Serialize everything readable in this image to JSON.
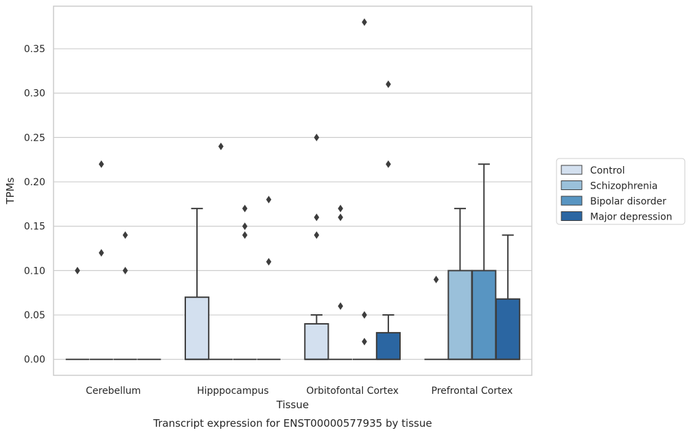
{
  "chart_data": {
    "type": "box",
    "title": "",
    "xlabel": "Tissue",
    "ylabel": "TPMs",
    "caption": "Transcript expression for ENST00000577935 by tissue",
    "ylim": [
      -0.018,
      0.398
    ],
    "yticks": [
      "0.00",
      "0.05",
      "0.10",
      "0.15",
      "0.20",
      "0.25",
      "0.30",
      "0.35"
    ],
    "grid": true,
    "legend_position": "right",
    "categories": [
      "Cerebellum",
      "Hipppocampus",
      "Orbitofontal Cortex",
      "Prefrontal Cortex"
    ],
    "series": [
      {
        "name": "Control",
        "color": "#d3e0ef",
        "boxes": [
          {
            "q1": 0,
            "median": 0,
            "q3": 0,
            "whisker_low": 0,
            "whisker_high": 0,
            "outliers": [
              0.1
            ]
          },
          {
            "q1": 0,
            "median": 0,
            "q3": 0.07,
            "whisker_low": 0,
            "whisker_high": 0.17,
            "outliers": []
          },
          {
            "q1": 0,
            "median": 0,
            "q3": 0.04,
            "whisker_low": 0,
            "whisker_high": 0.05,
            "outliers": [
              0.14,
              0.16,
              0.25
            ]
          },
          {
            "q1": 0,
            "median": 0,
            "q3": 0,
            "whisker_low": 0,
            "whisker_high": 0,
            "outliers": [
              0.09
            ]
          }
        ]
      },
      {
        "name": "Schizophrenia",
        "color": "#9ac0da",
        "boxes": [
          {
            "q1": 0,
            "median": 0,
            "q3": 0,
            "whisker_low": 0,
            "whisker_high": 0,
            "outliers": [
              0.12,
              0.22
            ]
          },
          {
            "q1": 0,
            "median": 0,
            "q3": 0,
            "whisker_low": 0,
            "whisker_high": 0,
            "outliers": [
              0.24
            ]
          },
          {
            "q1": 0,
            "median": 0,
            "q3": 0,
            "whisker_low": 0,
            "whisker_high": 0,
            "outliers": [
              0.06,
              0.16,
              0.17
            ]
          },
          {
            "q1": 0,
            "median": 0,
            "q3": 0.1,
            "whisker_low": 0,
            "whisker_high": 0.17,
            "outliers": []
          }
        ]
      },
      {
        "name": "Bipolar disorder",
        "color": "#5895c2",
        "boxes": [
          {
            "q1": 0,
            "median": 0,
            "q3": 0,
            "whisker_low": 0,
            "whisker_high": 0,
            "outliers": [
              0.1,
              0.14
            ]
          },
          {
            "q1": 0,
            "median": 0,
            "q3": 0,
            "whisker_low": 0,
            "whisker_high": 0,
            "outliers": [
              0.14,
              0.15,
              0.17
            ]
          },
          {
            "q1": 0,
            "median": 0,
            "q3": 0,
            "whisker_low": 0,
            "whisker_high": 0,
            "outliers": [
              0.02,
              0.05,
              0.38
            ]
          },
          {
            "q1": 0,
            "median": 0,
            "q3": 0.1,
            "whisker_low": 0,
            "whisker_high": 0.22,
            "outliers": []
          }
        ]
      },
      {
        "name": "Major depression",
        "color": "#2b66a2",
        "boxes": [
          {
            "q1": 0,
            "median": 0,
            "q3": 0,
            "whisker_low": 0,
            "whisker_high": 0,
            "outliers": []
          },
          {
            "q1": 0,
            "median": 0,
            "q3": 0,
            "whisker_low": 0,
            "whisker_high": 0,
            "outliers": [
              0.11,
              0.18
            ]
          },
          {
            "q1": 0,
            "median": 0,
            "q3": 0.03,
            "whisker_low": 0,
            "whisker_high": 0.05,
            "outliers": [
              0.22,
              0.31
            ]
          },
          {
            "q1": 0,
            "median": 0,
            "q3": 0.068,
            "whisker_low": 0,
            "whisker_high": 0.14,
            "outliers": []
          }
        ]
      }
    ]
  }
}
